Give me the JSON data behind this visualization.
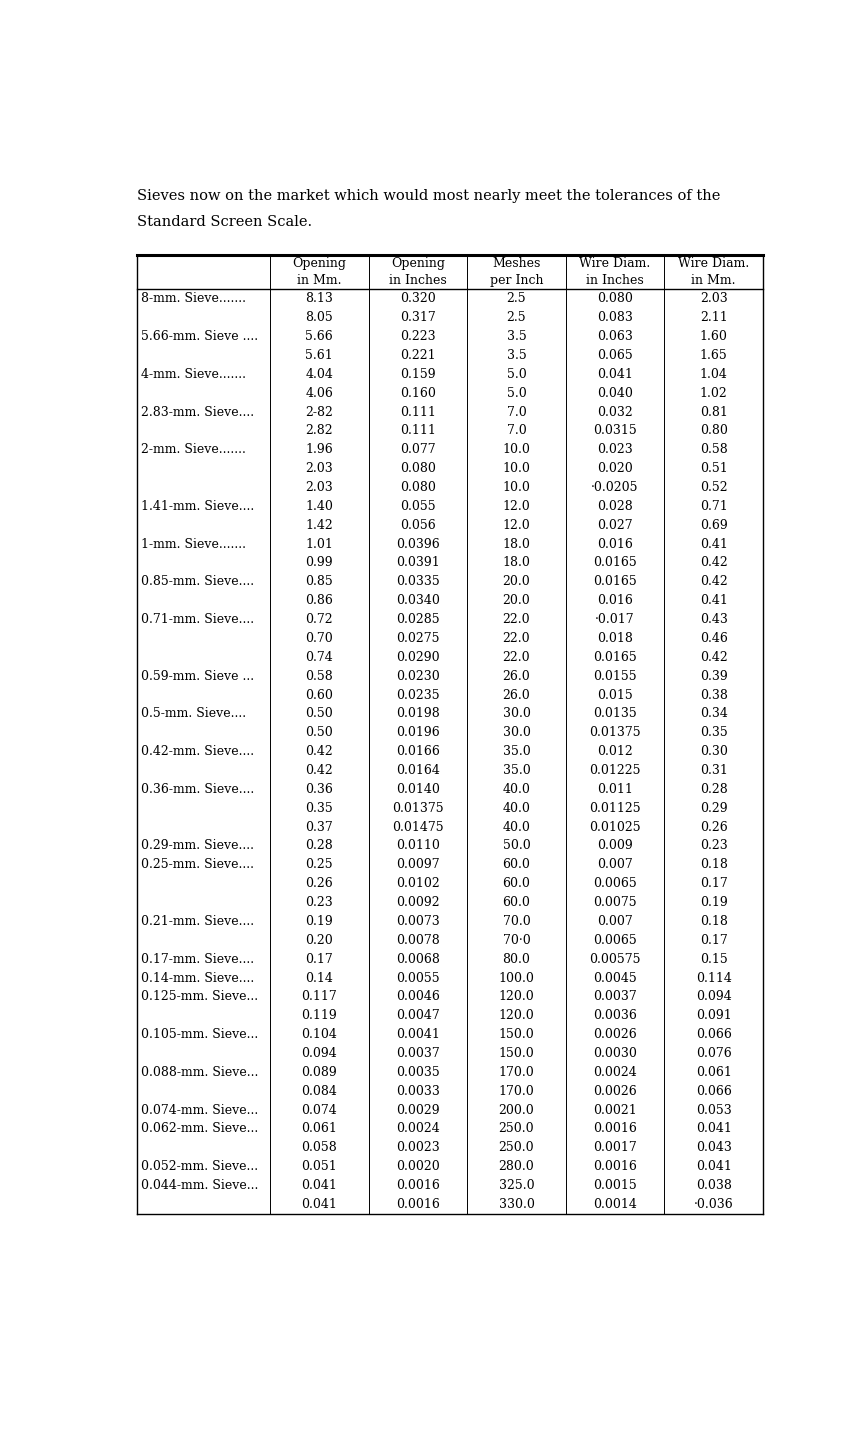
{
  "title_line1": "Sieves now on the market which would most nearly meet the tolerances of the",
  "title_line2": "Standard Screen Scale.",
  "col_headers": [
    [
      "Opening",
      "in Mm."
    ],
    [
      "Opening",
      "in Inches"
    ],
    [
      "Meshes",
      "per Inch"
    ],
    [
      "Wire Diam.",
      "in Inches"
    ],
    [
      "Wire Diam.",
      "in Mm."
    ]
  ],
  "rows": [
    [
      "8-mm. Sieve.......",
      "8.13",
      "0.320",
      "2.5",
      "0.080",
      "2.03"
    ],
    [
      "",
      "8.05",
      "0.317",
      "2.5",
      "0.083",
      "2.11"
    ],
    [
      "5.66-mm. Sieve ....",
      "5.66",
      "0.223",
      "3.5",
      "0.063",
      "1.60"
    ],
    [
      "",
      "5.61",
      "0.221",
      "3.5",
      "0.065",
      "1.65"
    ],
    [
      "4-mm. Sieve.......",
      "4.04",
      "0.159",
      "5.0",
      "0.041",
      "1.04"
    ],
    [
      "",
      "4.06",
      "0.160",
      "5.0",
      "0.040",
      "1.02"
    ],
    [
      "2.83-mm. Sieve....",
      "2-82",
      "0.111",
      "7.0",
      "0.032",
      "0.81"
    ],
    [
      "",
      "2.82",
      "0.111",
      "7.0",
      "0.0315",
      "0.80"
    ],
    [
      "2-mm. Sieve.......",
      "1.96",
      "0.077",
      "10.0",
      "0.023",
      "0.58"
    ],
    [
      "",
      "2.03",
      "0.080",
      "10.0",
      "0.020",
      "0.51"
    ],
    [
      "",
      "2.03",
      "0.080",
      "10.0",
      "·0.0205",
      "0.52"
    ],
    [
      "1.41-mm. Sieve....",
      "1.40",
      "0.055",
      "12.0",
      "0.028",
      "0.71"
    ],
    [
      "",
      "1.42",
      "0.056",
      "12.0",
      "0.027",
      "0.69"
    ],
    [
      "1-mm. Sieve.......",
      "1.01",
      "0.0396",
      "18.0",
      "0.016",
      "0.41"
    ],
    [
      "",
      "0.99",
      "0.0391",
      "18.0",
      "0.0165",
      "0.42"
    ],
    [
      "0.85-mm. Sieve....",
      "0.85",
      "0.0335",
      "20.0",
      "0.0165",
      "0.42"
    ],
    [
      "",
      "0.86",
      "0.0340",
      "20.0",
      "0.016",
      "0.41"
    ],
    [
      "0.71-mm. Sieve....",
      "0.72",
      "0.0285",
      "22.0",
      "·0.017",
      "0.43"
    ],
    [
      "",
      "0.70",
      "0.0275",
      "22.0",
      "0.018",
      "0.46"
    ],
    [
      "",
      "0.74",
      "0.0290",
      "22.0",
      "0.0165",
      "0.42"
    ],
    [
      "0.59-mm. Sieve ...",
      "0.58",
      "0.0230",
      "26.0",
      "0.0155",
      "0.39"
    ],
    [
      "",
      "0.60",
      "0.0235",
      "26.0",
      "0.015",
      "0.38"
    ],
    [
      "0.5-mm. Sieve....",
      "0.50",
      "0.0198",
      "30.0",
      "0.0135",
      "0.34"
    ],
    [
      "",
      "0.50",
      "0.0196",
      "30.0",
      "0.01375",
      "0.35"
    ],
    [
      "0.42-mm. Sieve....",
      "0.42",
      "0.0166",
      "35.0",
      "0.012",
      "0.30"
    ],
    [
      "",
      "0.42",
      "0.0164",
      "35.0",
      "0.01225",
      "0.31"
    ],
    [
      "0.36-mm. Sieve....",
      "0.36",
      "0.0140",
      "40.0",
      "0.011",
      "0.28"
    ],
    [
      "",
      "0.35",
      "0.01375",
      "40.0",
      "0.01125",
      "0.29"
    ],
    [
      "",
      "0.37",
      "0.01475",
      "40.0",
      "0.01025",
      "0.26"
    ],
    [
      "0.29-mm. Sieve....",
      "0.28",
      "0.0110",
      "50.0",
      "0.009",
      "0.23"
    ],
    [
      "0.25-mm. Sieve....",
      "0.25",
      "0.0097",
      "60.0",
      "0.007",
      "0.18"
    ],
    [
      "",
      "0.26",
      "0.0102",
      "60.0",
      "0.0065",
      "0.17"
    ],
    [
      "",
      "0.23",
      "0.0092",
      "60.0",
      "0.0075",
      "0.19"
    ],
    [
      "0.21-mm. Sieve....",
      "0.19",
      "0.0073",
      "70.0",
      "0.007",
      "0.18"
    ],
    [
      "",
      "0.20",
      "0.0078",
      "70·0",
      "0.0065",
      "0.17"
    ],
    [
      "0.17-mm. Sieve....",
      "0.17",
      "0.0068",
      "80.0",
      "0.00575",
      "0.15"
    ],
    [
      "0.14-mm. Sieve....",
      "0.14",
      "0.0055",
      "100.0",
      "0.0045",
      "0.114"
    ],
    [
      "0.125-mm. Sieve...",
      "0.117",
      "0.0046",
      "120.0",
      "0.0037",
      "0.094"
    ],
    [
      "",
      "0.119",
      "0.0047",
      "120.0",
      "0.0036",
      "0.091"
    ],
    [
      "0.105-mm. Sieve...",
      "0.104",
      "0.0041",
      "150.0",
      "0.0026",
      "0.066"
    ],
    [
      "",
      "0.094",
      "0.0037",
      "150.0",
      "0.0030",
      "0.076"
    ],
    [
      "0.088-mm. Sieve...",
      "0.089",
      "0.0035",
      "170.0",
      "0.0024",
      "0.061"
    ],
    [
      "",
      "0.084",
      "0.0033",
      "170.0",
      "0.0026",
      "0.066"
    ],
    [
      "0.074-mm. Sieve...",
      "0.074",
      "0.0029",
      "200.0",
      "0.0021",
      "0.053"
    ],
    [
      "0.062-mm. Sieve...",
      "0.061",
      "0.0024",
      "250.0",
      "0.0016",
      "0.041"
    ],
    [
      "",
      "0.058",
      "0.0023",
      "250.0",
      "0.0017",
      "0.043"
    ],
    [
      "0.052-mm. Sieve...",
      "0.051",
      "0.0020",
      "280.0",
      "0.0016",
      "0.041"
    ],
    [
      "0.044-mm. Sieve...",
      "0.041",
      "0.0016",
      "325.0",
      "0.0015",
      "0.038"
    ],
    [
      "",
      "0.041",
      "0.0016",
      "330.0",
      "0.0014",
      "·0.036"
    ]
  ],
  "bg_color": "#ffffff",
  "text_color": "#000000",
  "font_size": 9.0,
  "title_font_size": 10.5,
  "header_font_size": 9.0
}
